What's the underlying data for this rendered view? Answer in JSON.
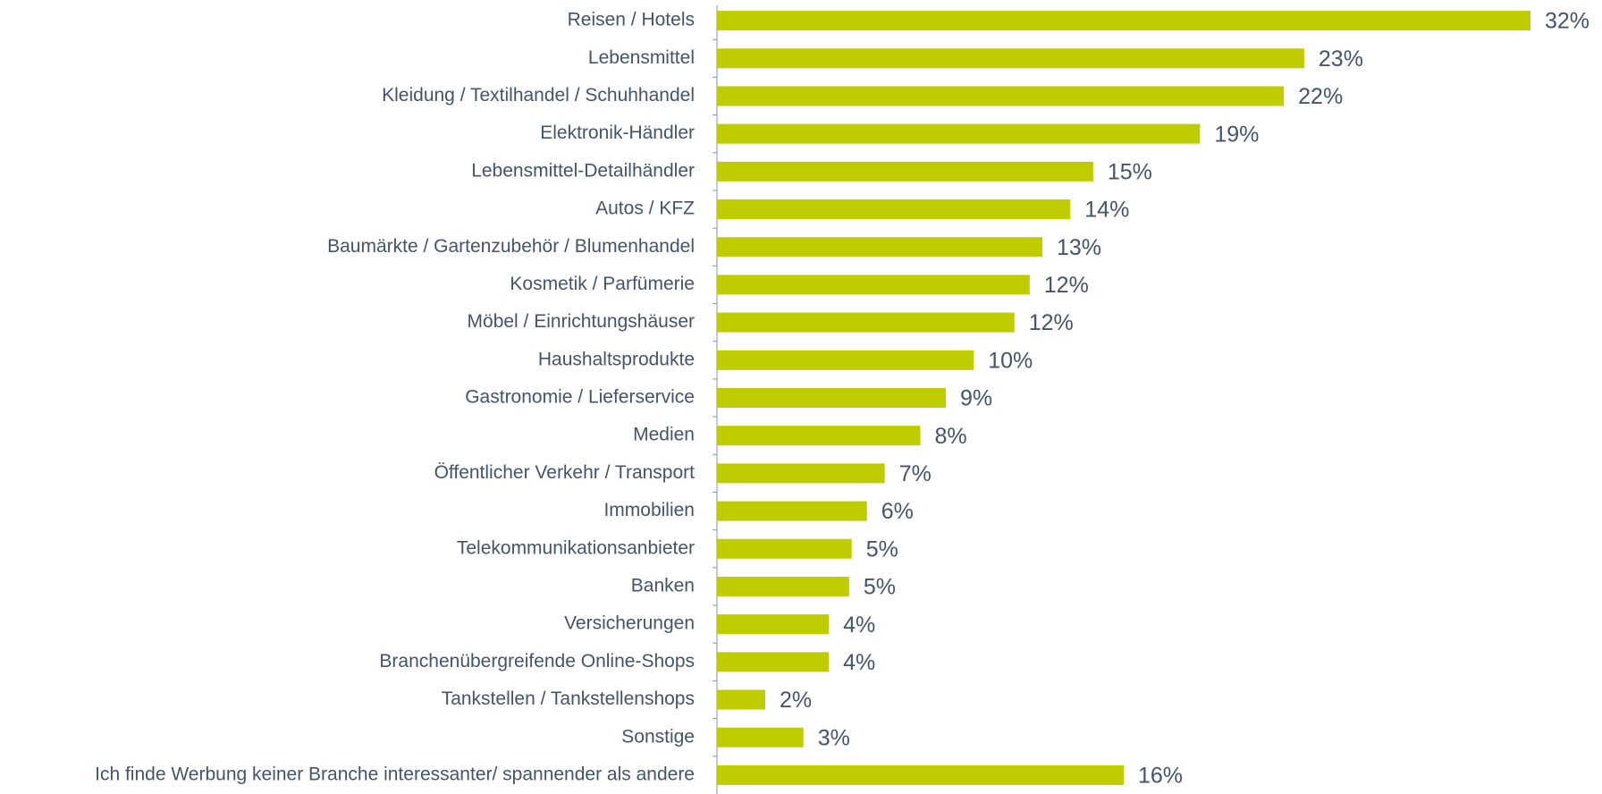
{
  "chart_data": {
    "type": "bar",
    "orientation": "horizontal",
    "color": "#bfcd00",
    "categories": [
      "Reisen / Hotels",
      "Lebensmittel",
      "Kleidung / Textilhandel / Schuhhandel",
      "Elektronik-Händler",
      "Lebensmittel-Detailhändler",
      "Autos / KFZ",
      "Baumärkte / Gartenzubehör / Blumenhandel",
      "Kosmetik / Parfümerie",
      "Möbel / Einrichtungshäuser",
      "Haushaltsprodukte",
      "Gastronomie / Lieferservice",
      "Medien",
      "Öffentlicher Verkehr / Transport",
      "Immobilien",
      "Telekommunikationsanbieter",
      "Banken",
      "Versicherungen",
      "Branchenübergreifende Online-Shops",
      "Tankstellen / Tankstellenshops",
      "Sonstige",
      "Ich finde Werbung keiner Branche interessanter/ spannender als andere"
    ],
    "values": [
      32,
      23.1,
      22.3,
      19,
      14.8,
      13.9,
      12.8,
      12.3,
      11.7,
      10.1,
      9,
      8,
      6.6,
      5.9,
      5.3,
      5.2,
      4.4,
      4.4,
      1.9,
      3.4,
      16
    ],
    "value_labels": [
      "32%",
      "23%",
      "22%",
      "19%",
      "15%",
      "14%",
      "13%",
      "12%",
      "12%",
      "10%",
      "9%",
      "8%",
      "7%",
      "6%",
      "5%",
      "5%",
      "4%",
      "4%",
      "2%",
      "3%",
      "16%"
    ]
  }
}
